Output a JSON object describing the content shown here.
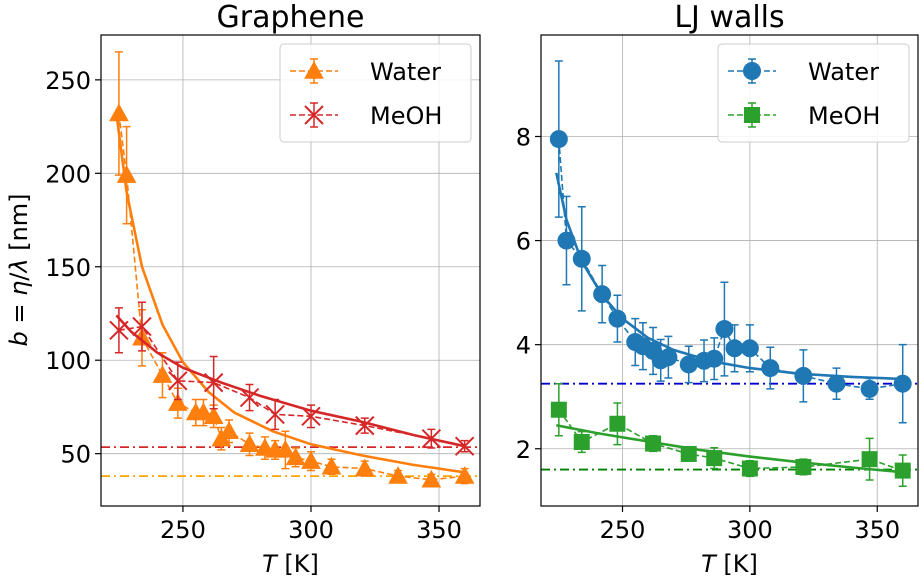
{
  "chart_data": [
    {
      "type": "line",
      "title": "Graphene",
      "xlabel": "T [K]",
      "ylabel": "b = η/λ [nm]",
      "xlim": [
        218,
        366
      ],
      "ylim": [
        22,
        274
      ],
      "xticks": [
        250,
        300,
        350
      ],
      "yticks": [
        50,
        100,
        150,
        200,
        250
      ],
      "legend_position": "top-right",
      "series": [
        {
          "name": "Water",
          "color": "#ff7f0e",
          "marker": "triangle",
          "x": [
            225,
            228,
            234,
            242,
            248,
            255,
            258,
            262,
            265,
            268,
            276,
            282,
            286,
            290,
            294,
            300,
            308,
            321,
            334,
            347,
            360
          ],
          "y": [
            232,
            199,
            112,
            92,
            77,
            72,
            72,
            70,
            58,
            62,
            55,
            53,
            52,
            52,
            48,
            46,
            43,
            42,
            38,
            36,
            38
          ],
          "err": [
            33,
            26,
            15,
            12,
            8,
            7,
            7,
            6,
            6,
            6,
            6,
            6,
            5,
            10,
            5,
            5,
            4,
            4,
            3,
            3,
            4
          ],
          "fit": [
            [
              224,
              232
            ],
            [
              228,
              190
            ],
            [
              234,
              150
            ],
            [
              242,
              119
            ],
            [
              250,
              99
            ],
            [
              260,
              83
            ],
            [
              270,
              72
            ],
            [
              285,
              62
            ],
            [
              300,
              55
            ],
            [
              320,
              49
            ],
            [
              340,
              44
            ],
            [
              360,
              40
            ]
          ]
        },
        {
          "name": "MeOH",
          "color": "#d62728",
          "marker": "x",
          "x": [
            225,
            234,
            248,
            262,
            276,
            286,
            300,
            321,
            347,
            360
          ],
          "y": [
            116,
            118,
            89,
            88,
            80,
            71,
            70,
            65,
            58,
            54
          ],
          "err": [
            12,
            13,
            10,
            14,
            7,
            8,
            6,
            4,
            5,
            3
          ],
          "fit": [
            [
              224,
              124
            ],
            [
              230,
              115
            ],
            [
              240,
              104
            ],
            [
              250,
              96
            ],
            [
              265,
              88
            ],
            [
              280,
              81
            ],
            [
              300,
              73
            ],
            [
              320,
              67
            ],
            [
              340,
              60
            ],
            [
              360,
              54
            ]
          ]
        }
      ],
      "hlines": [
        {
          "y": 53.5,
          "color": "#d62728"
        },
        {
          "y": 38,
          "color": "#ffa500"
        }
      ]
    },
    {
      "type": "line",
      "title": "LJ walls",
      "xlabel": "T [K]",
      "ylabel": "",
      "xlim": [
        218,
        366
      ],
      "ylim": [
        0.9,
        9.95
      ],
      "xticks": [
        250,
        300,
        350
      ],
      "yticks": [
        2,
        4,
        6,
        8
      ],
      "legend_position": "top-right",
      "series": [
        {
          "name": "Water",
          "color": "#1f77b4",
          "marker": "circle",
          "x": [
            225,
            228,
            234,
            242,
            248,
            255,
            258,
            262,
            265,
            268,
            276,
            282,
            286,
            290,
            294,
            300,
            308,
            321,
            334,
            347,
            360
          ],
          "y": [
            7.95,
            6.0,
            5.65,
            4.97,
            4.5,
            4.05,
            3.97,
            3.88,
            3.7,
            3.76,
            3.62,
            3.69,
            3.73,
            4.3,
            3.93,
            3.93,
            3.55,
            3.4,
            3.25,
            3.15,
            3.25
          ],
          "err": [
            1.5,
            0.85,
            1.0,
            0.55,
            0.45,
            0.45,
            0.45,
            0.45,
            0.4,
            0.4,
            0.35,
            0.4,
            0.4,
            0.9,
            0.45,
            0.45,
            0.4,
            0.5,
            0.3,
            0.2,
            0.75
          ],
          "fit": [
            [
              224,
              7.3
            ],
            [
              228,
              6.4
            ],
            [
              234,
              5.6
            ],
            [
              242,
              4.95
            ],
            [
              250,
              4.5
            ],
            [
              260,
              4.13
            ],
            [
              270,
              3.9
            ],
            [
              285,
              3.68
            ],
            [
              300,
              3.55
            ],
            [
              320,
              3.44
            ],
            [
              340,
              3.38
            ],
            [
              360,
              3.34
            ]
          ]
        },
        {
          "name": "MeOH",
          "color": "#2ca02c",
          "marker": "square",
          "x": [
            225,
            234,
            248,
            262,
            276,
            286,
            300,
            321,
            347,
            360
          ],
          "y": [
            2.75,
            2.13,
            2.48,
            2.1,
            1.9,
            1.82,
            1.62,
            1.65,
            1.8,
            1.58
          ],
          "err": [
            0.5,
            0.2,
            0.4,
            0.15,
            0.1,
            0.2,
            0.15,
            0.15,
            0.4,
            0.3
          ],
          "fit": [
            [
              224,
              2.45
            ],
            [
              240,
              2.3
            ],
            [
              260,
              2.14
            ],
            [
              280,
              1.98
            ],
            [
              300,
              1.85
            ],
            [
              320,
              1.74
            ],
            [
              340,
              1.64
            ],
            [
              360,
              1.55
            ]
          ]
        }
      ],
      "hlines": [
        {
          "y": 3.25,
          "color": "#0000cd"
        },
        {
          "y": 1.6,
          "color": "#008000"
        }
      ]
    }
  ]
}
